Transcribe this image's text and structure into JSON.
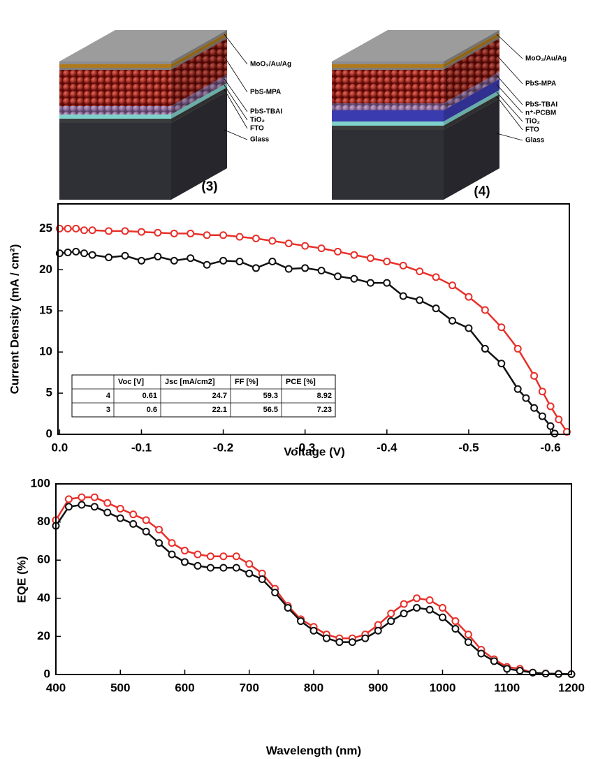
{
  "diagrams": [
    {
      "label": "(3)",
      "layers": [
        "MoO₃/Au/Ag",
        "PbS-MPA",
        "PbS-TBAI",
        "TiO₂",
        "FTO",
        "Glass"
      ]
    },
    {
      "label": "(4)",
      "layers": [
        "MoO₃/Au/Ag",
        "PbS-MPA",
        "PbS-TBAI",
        "n⁺-PCBM",
        "TiO₂",
        "FTO",
        "Glass"
      ]
    }
  ],
  "chart_data": [
    {
      "type": "line",
      "x_label": "Voltage (V)",
      "y_label": "Current Density (mA / cm²)",
      "xlim": [
        0.002,
        -0.623
      ],
      "ylim": [
        0,
        28
      ],
      "xticks": [
        {
          "value": 0,
          "label": "0.0"
        },
        -0.1,
        -0.2,
        -0.3,
        -0.4,
        -0.5,
        -0.6
      ],
      "yticks": [
        0,
        5,
        10,
        15,
        20,
        25
      ],
      "series": [
        {
          "color": "#e8302a",
          "x": [
            0,
            -0.01,
            -0.02,
            -0.03,
            -0.04,
            -0.06,
            -0.08,
            -0.1,
            -0.12,
            -0.14,
            -0.16,
            -0.18,
            -0.2,
            -0.22,
            -0.24,
            -0.26,
            -0.28,
            -0.3,
            -0.32,
            -0.34,
            -0.36,
            -0.38,
            -0.4,
            -0.42,
            -0.44,
            -0.46,
            -0.48,
            -0.5,
            -0.52,
            -0.54,
            -0.56,
            -0.58,
            -0.59,
            -0.6,
            -0.61,
            -0.62
          ],
          "values": [
            25.0,
            25.0,
            25.0,
            24.8,
            24.8,
            24.7,
            24.7,
            24.6,
            24.5,
            24.4,
            24.4,
            24.2,
            24.2,
            24.0,
            23.8,
            23.5,
            23.2,
            22.9,
            22.6,
            22.2,
            21.8,
            21.4,
            21.0,
            20.5,
            19.8,
            19.1,
            18.1,
            16.7,
            15.1,
            13.0,
            10.4,
            7.1,
            5.2,
            3.4,
            1.8,
            0.3
          ]
        },
        {
          "color": "#111111",
          "x": [
            0,
            -0.01,
            -0.02,
            -0.03,
            -0.04,
            -0.06,
            -0.08,
            -0.1,
            -0.12,
            -0.14,
            -0.16,
            -0.18,
            -0.2,
            -0.22,
            -0.24,
            -0.26,
            -0.28,
            -0.3,
            -0.32,
            -0.34,
            -0.36,
            -0.38,
            -0.4,
            -0.42,
            -0.44,
            -0.46,
            -0.48,
            -0.5,
            -0.52,
            -0.54,
            -0.56,
            -0.57,
            -0.58,
            -0.59,
            -0.6,
            -0.605
          ],
          "values": [
            22.0,
            22.1,
            22.2,
            22.0,
            21.8,
            21.5,
            21.7,
            21.1,
            21.6,
            21.1,
            21.4,
            20.6,
            21.1,
            21.0,
            20.2,
            21.0,
            20.1,
            20.2,
            19.9,
            19.2,
            18.9,
            18.4,
            18.4,
            16.8,
            16.3,
            15.3,
            13.8,
            12.9,
            10.4,
            8.6,
            5.5,
            4.4,
            3.2,
            2.2,
            1.0,
            0.1
          ]
        }
      ],
      "inset_table": {
        "columns": [
          "Voc [V]",
          "Jsc [mA/cm2]",
          "FF [%]",
          "PCE [%]"
        ],
        "rows": [
          [
            4,
            0.61,
            24.7,
            59.3,
            8.92
          ],
          [
            3,
            0.6,
            22.1,
            56.5,
            7.23
          ]
        ]
      }
    },
    {
      "type": "line",
      "x_label": "Wavelength (nm)",
      "y_label": "EQE (%)",
      "xlim": [
        400,
        1200
      ],
      "ylim": [
        0,
        100
      ],
      "xticks": [
        400,
        500,
        600,
        700,
        800,
        900,
        1000,
        1100,
        1200
      ],
      "yticks": [
        0,
        20,
        40,
        60,
        80,
        100
      ],
      "series": [
        {
          "color": "#e8302a",
          "x": [
            400,
            420,
            440,
            460,
            480,
            500,
            520,
            540,
            560,
            580,
            600,
            620,
            640,
            660,
            680,
            700,
            720,
            740,
            760,
            780,
            800,
            820,
            840,
            860,
            880,
            900,
            920,
            940,
            960,
            980,
            1000,
            1020,
            1040,
            1060,
            1080,
            1100,
            1120,
            1140,
            1160,
            1180,
            1200
          ],
          "values": [
            81,
            92,
            93,
            93,
            90,
            87,
            84,
            81,
            76,
            69,
            65,
            63,
            62,
            62,
            62,
            58,
            53,
            45,
            36,
            29,
            25,
            21,
            19,
            19,
            21,
            26,
            32,
            37,
            40,
            39,
            35,
            28,
            21,
            13,
            8,
            4,
            3,
            1,
            0.5,
            0.3,
            0.2
          ]
        },
        {
          "color": "#111111",
          "x": [
            400,
            420,
            440,
            460,
            480,
            500,
            520,
            540,
            560,
            580,
            600,
            620,
            640,
            660,
            680,
            700,
            720,
            740,
            760,
            780,
            800,
            820,
            840,
            860,
            880,
            900,
            920,
            940,
            960,
            980,
            1000,
            1020,
            1040,
            1060,
            1080,
            1100,
            1120,
            1140,
            1160,
            1180,
            1200
          ],
          "values": [
            78,
            88,
            89,
            88,
            85,
            82,
            79,
            75,
            69,
            63,
            59,
            57,
            56,
            56,
            56,
            53,
            50,
            43,
            35,
            28,
            23,
            19,
            17,
            17,
            19,
            23,
            28,
            32,
            35,
            34,
            30,
            24,
            17,
            11,
            7,
            3,
            2,
            1,
            0.5,
            0.3,
            0.2
          ]
        }
      ]
    }
  ]
}
